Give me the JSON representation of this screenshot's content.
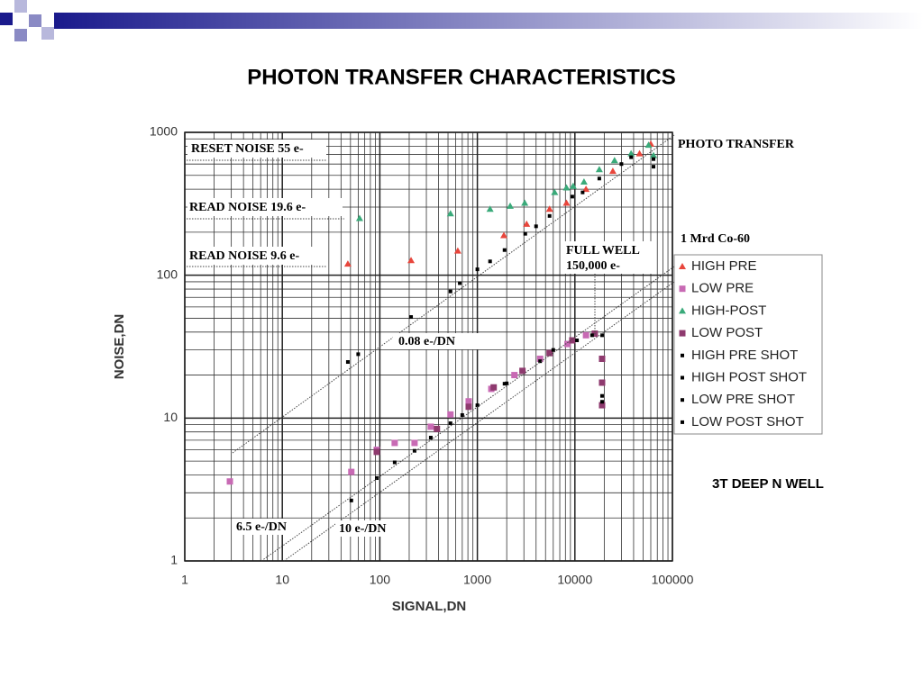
{
  "chart_data": {
    "type": "scatter",
    "title": "PHOTON TRANSFER CHARACTERISTICS",
    "x_label": "SIGNAL,DN",
    "y_label": "NOISE,DN",
    "log_x": true,
    "log_y": true,
    "grid": true,
    "minor_grid": true,
    "xlim": [
      1,
      100000
    ],
    "ylim": [
      1,
      1000
    ],
    "xticks": [
      1,
      10,
      100,
      1000,
      10000,
      100000
    ],
    "yticks": [
      1,
      10,
      100,
      1000
    ],
    "legend_title": "1 Mrd Co-60",
    "legend": "right",
    "annotations": [
      "PHOTO TRANSFER",
      "RESET NOISE 55 e-",
      "READ NOISE 19.6 e-",
      "READ NOISE 9.6 e-",
      "0.08 e-/DN",
      "FULL WELL",
      "150,000 e-",
      "6.5 e-/DN",
      "10 e-/DN",
      "3T DEEP N WELL"
    ],
    "series": [
      {
        "name": "HIGH PRE",
        "color": "#e8463c",
        "marker": "triangle",
        "x": [
          47,
          209,
          630,
          1870,
          3200,
          5500,
          8200,
          13000,
          24500,
          46000,
          60000
        ],
        "values": [
          120,
          127,
          148,
          190,
          228,
          290,
          320,
          400,
          535,
          710,
          830
        ]
      },
      {
        "name": "LOW PRE",
        "color": "#c86ab4",
        "marker": "square",
        "x": [
          2.9,
          51,
          93,
          142,
          227,
          333,
          530,
          815,
          1390,
          2400,
          4400,
          8400,
          13000
        ],
        "values": [
          3.6,
          4.2,
          6.0,
          6.7,
          6.7,
          8.7,
          10.6,
          13.1,
          16,
          20,
          26,
          33,
          38
        ]
      },
      {
        "name": "HIGH-POST",
        "color": "#3aaa7a",
        "marker": "triangle",
        "x": [
          62,
          530,
          1350,
          2170,
          3060,
          6200,
          8200,
          9600,
          12400,
          17800,
          25500,
          37700,
          57000,
          64000
        ],
        "values": [
          250,
          270,
          290,
          305,
          320,
          380,
          410,
          420,
          450,
          550,
          635,
          710,
          815,
          690
        ]
      },
      {
        "name": "LOW POST",
        "color": "#8e3a6e",
        "marker": "square",
        "x": [
          93,
          385,
          815,
          1470,
          2900,
          5500,
          9400,
          16000,
          19000,
          19000,
          19000
        ],
        "values": [
          5.8,
          8.4,
          12,
          16.4,
          21.4,
          28.5,
          35,
          39,
          26,
          17.7,
          12.3
        ]
      },
      {
        "name": "HIGH PRE SHOT",
        "color": "#000000",
        "marker": "dot",
        "x": [
          47,
          60,
          209,
          530,
          660,
          1350,
          1900,
          3100,
          5500,
          9400,
          17800,
          37700,
          64000
        ],
        "values": [
          24.7,
          28,
          51,
          77,
          88,
          125,
          150,
          195,
          260,
          355,
          475,
          670,
          575
        ]
      },
      {
        "name": "HIGH POST SHOT",
        "color": "#000000",
        "marker": "dot",
        "x": [
          1000,
          4000,
          12000,
          30000,
          64000
        ],
        "values": [
          110,
          220,
          380,
          600,
          650
        ]
      },
      {
        "name": "LOW PRE SHOT",
        "color": "#000000",
        "marker": "dot",
        "x": [
          51,
          93,
          142,
          227,
          333,
          530,
          1000,
          1900,
          4400,
          10500,
          19000,
          19000
        ],
        "values": [
          2.65,
          3.8,
          4.9,
          5.9,
          7.3,
          9.2,
          12.3,
          17.4,
          25,
          35,
          38,
          14.3
        ]
      },
      {
        "name": "LOW POST SHOT",
        "color": "#000000",
        "marker": "dot",
        "x": [
          700,
          2000,
          6000,
          15000,
          19000
        ],
        "values": [
          10.5,
          17.5,
          30,
          38,
          13
        ]
      }
    ]
  }
}
